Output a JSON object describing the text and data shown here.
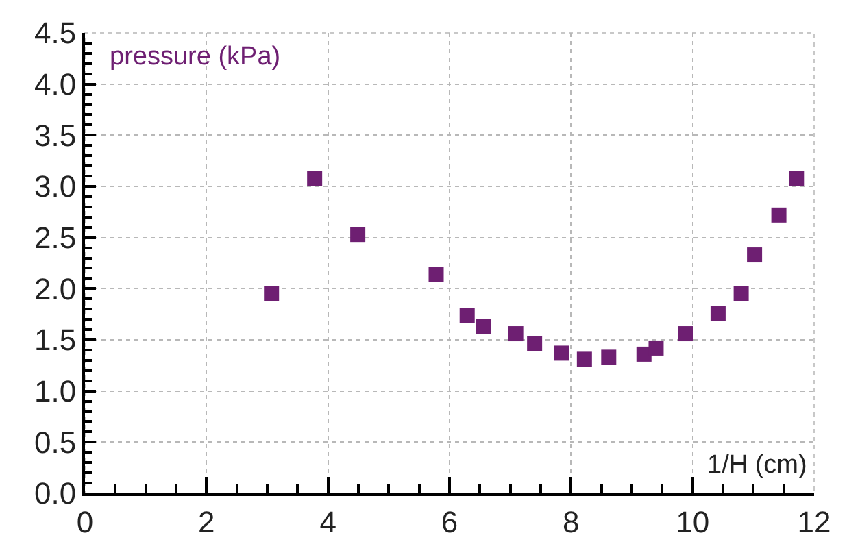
{
  "chart_data": {
    "type": "scatter",
    "xlabel": "1/H (cm)",
    "ylabel": "pressure (kPa)",
    "x": [
      3.07,
      3.78,
      4.49,
      5.78,
      6.29,
      6.56,
      7.09,
      7.4,
      7.84,
      8.22,
      8.62,
      9.2,
      9.4,
      9.89,
      10.42,
      10.8,
      11.02,
      11.42,
      11.71
    ],
    "series": [
      {
        "color": "#6e1f72",
        "values": [
          1.95,
          3.08,
          2.53,
          2.14,
          1.74,
          1.63,
          1.56,
          1.46,
          1.37,
          1.31,
          1.33,
          1.36,
          1.42,
          1.56,
          1.76,
          1.95,
          2.33,
          2.72,
          3.08
        ]
      }
    ],
    "xlim": [
      0,
      12
    ],
    "xticks": [
      0,
      2,
      4,
      6,
      8,
      10,
      12
    ],
    "ylim": [
      0,
      4.5
    ],
    "yticks": [
      {
        "value": 0,
        "label": "0.0"
      },
      0.5,
      {
        "value": 1,
        "label": "1.0"
      },
      1.5,
      {
        "value": 2,
        "label": "2.0"
      },
      2.5,
      {
        "value": 3,
        "label": "3.0"
      },
      3.5,
      {
        "value": 4,
        "label": "4.0"
      },
      4.5
    ],
    "marker": "square",
    "grid": true
  }
}
